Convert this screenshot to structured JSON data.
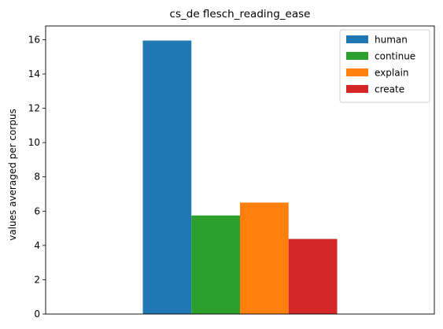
{
  "chart_data": {
    "type": "bar",
    "title": "cs_de flesch_reading_ease",
    "xlabel": "",
    "ylabel": "values averaged per corpus",
    "categories": [
      ""
    ],
    "ylim": [
      0,
      16.8
    ],
    "yticks": [
      0,
      2,
      4,
      6,
      8,
      10,
      12,
      14,
      16
    ],
    "grid": false,
    "legend_position": "top-right",
    "series": [
      {
        "name": "human",
        "values": [
          15.95
        ],
        "color": "#1f77b4"
      },
      {
        "name": "continue",
        "values": [
          5.75
        ],
        "color": "#2ca02c"
      },
      {
        "name": "explain",
        "values": [
          6.5
        ],
        "color": "#ff7f0e"
      },
      {
        "name": "create",
        "values": [
          4.38
        ],
        "color": "#d62728"
      }
    ]
  }
}
